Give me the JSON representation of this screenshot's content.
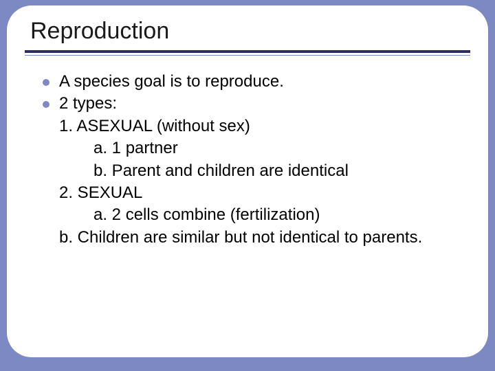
{
  "slide": {
    "title": "Reproduction",
    "background_color": "#7d89c2",
    "card_color": "#ffffff",
    "rule_thick_color": "#2c2c60",
    "rule_thin_color": "#7d89c2",
    "title_fontsize": 34,
    "body_fontsize": 24,
    "bullet_color": "#7d89c2",
    "items": [
      {
        "text": "A species goal is to reproduce.",
        "bulleted": true
      },
      {
        "text": "2 types:",
        "bulleted": true
      },
      {
        "text": "1.  ASEXUAL (without sex)",
        "bulleted": false,
        "indent": 1
      },
      {
        "text": "a.  1 partner",
        "bulleted": false,
        "indent": 2
      },
      {
        "text": "b.  Parent and children are identical",
        "bulleted": false,
        "indent": 2
      },
      {
        "text": "2.  SEXUAL",
        "bulleted": false,
        "indent": 1
      },
      {
        "text": "a.  2 cells combine (fertilization)",
        "bulleted": false,
        "indent": 2
      },
      {
        "text": "b.  Children are similar but not identical to parents.",
        "bulleted": false,
        "indent": 3
      }
    ]
  }
}
